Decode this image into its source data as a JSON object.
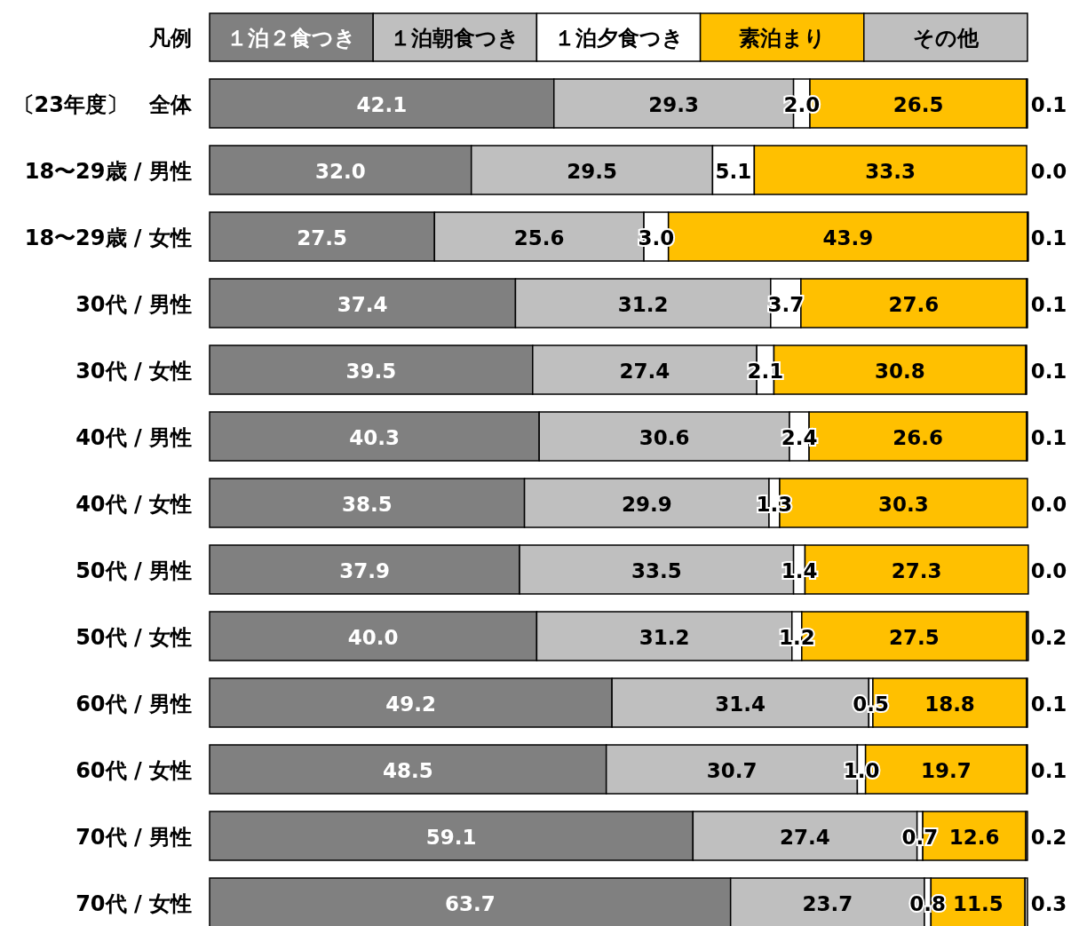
{
  "chart_data": {
    "type": "bar",
    "orientation": "horizontal",
    "stacked": true,
    "legend": "top",
    "legend_title": "凡例",
    "xlim": [
      0,
      100
    ],
    "categories": [
      "〔23年度〕　全体",
      "18〜29歳 / 男性",
      "18〜29歳 / 女性",
      "30代 / 男性",
      "30代 / 女性",
      "40代 / 男性",
      "40代 / 女性",
      "50代 / 男性",
      "50代 / 女性",
      "60代 / 男性",
      "60代 / 女性",
      "70代 / 男性",
      "70代 / 女性"
    ],
    "series": [
      {
        "name": "１泊２食つき",
        "color": "#808080",
        "values": [
          42.1,
          32.0,
          27.5,
          37.4,
          39.5,
          40.3,
          38.5,
          37.9,
          40.0,
          49.2,
          48.5,
          59.1,
          63.7
        ],
        "value_labels": [
          "42.1",
          "32.0",
          "27.5",
          "37.4",
          "39.5",
          "40.3",
          "38.5",
          "37.9",
          "40.0",
          "49.2",
          "48.5",
          "59.1",
          "63.7"
        ]
      },
      {
        "name": "１泊朝食つき",
        "color": "#bfbfbf",
        "values": [
          29.3,
          29.5,
          25.6,
          31.2,
          27.4,
          30.6,
          29.9,
          33.5,
          31.2,
          31.4,
          30.7,
          27.4,
          23.7
        ],
        "value_labels": [
          "29.3",
          "29.5",
          "25.6",
          "31.2",
          "27.4",
          "30.6",
          "29.9",
          "33.5",
          "31.2",
          "31.4",
          "30.7",
          "27.4",
          "23.7"
        ]
      },
      {
        "name": "１泊夕食つき",
        "color": "#ffffff",
        "values": [
          2.0,
          5.1,
          3.0,
          3.7,
          2.1,
          2.4,
          1.3,
          1.4,
          1.2,
          0.5,
          1.0,
          0.7,
          0.8
        ],
        "value_labels": [
          "2.0",
          "5.1",
          "3.0",
          "3.7",
          "2.1",
          "2.4",
          "1.3",
          "1.4",
          "1.2",
          "0.5",
          "1.0",
          "0.7",
          "0.8"
        ]
      },
      {
        "name": "素泊まり",
        "color": "#ffc000",
        "values": [
          26.5,
          33.3,
          43.9,
          27.6,
          30.8,
          26.6,
          30.3,
          27.3,
          27.5,
          18.8,
          19.7,
          12.6,
          11.5
        ],
        "value_labels": [
          "26.5",
          "33.3",
          "43.9",
          "27.6",
          "30.8",
          "26.6",
          "30.3",
          "27.3",
          "27.5",
          "18.8",
          "19.7",
          "12.6",
          "11.5"
        ]
      },
      {
        "name": "その他",
        "color": "#bfbfbf",
        "values": [
          0.1,
          0.0,
          0.1,
          0.1,
          0.1,
          0.1,
          0.0,
          0.0,
          0.2,
          0.1,
          0.1,
          0.2,
          0.3
        ],
        "value_labels": [
          "0.1",
          "0.0",
          "0.1",
          "0.1",
          "0.1",
          "0.1",
          "0.0",
          "0.0",
          "0.2",
          "0.1",
          "0.1",
          "0.2",
          "0.3"
        ]
      }
    ]
  }
}
